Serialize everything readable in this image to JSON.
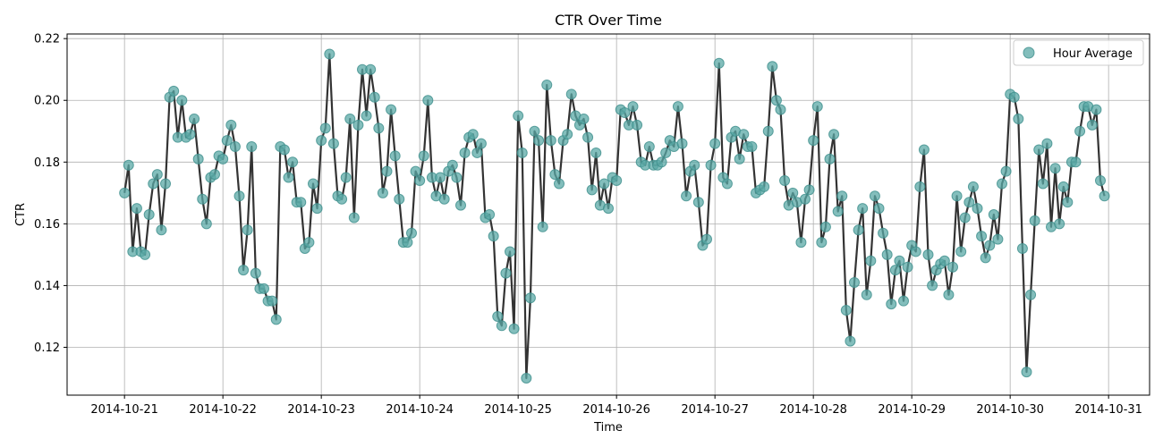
{
  "chart_data": {
    "type": "line",
    "title": "CTR Over Time",
    "xlabel": "Time",
    "ylabel": "CTR",
    "x_start": "2014-10-21T00:00",
    "x_step_hours": 1,
    "x_ticks": [
      "2014-10-21",
      "2014-10-22",
      "2014-10-23",
      "2014-10-24",
      "2014-10-25",
      "2014-10-26",
      "2014-10-27",
      "2014-10-28",
      "2014-10-29",
      "2014-10-30",
      "2014-10-31"
    ],
    "xlim": [
      "2014-10-20T10:00",
      "2014-10-31T10:00"
    ],
    "y_ticks": [
      0.12,
      0.14,
      0.16,
      0.18,
      0.2,
      0.22
    ],
    "y_tick_labels": [
      "0.12",
      "0.14",
      "0.16",
      "0.18",
      "0.20",
      "0.22"
    ],
    "ylim": [
      0.1045,
      0.2215
    ],
    "grid": true,
    "legend_position": "top-right",
    "series": [
      {
        "name": "Hour Average",
        "marker_color": "#5aa8a5",
        "line_color": "#333333",
        "values": [
          0.17,
          0.179,
          0.151,
          0.165,
          0.151,
          0.15,
          0.163,
          0.173,
          0.176,
          0.158,
          0.173,
          0.201,
          0.203,
          0.188,
          0.2,
          0.188,
          0.189,
          0.194,
          0.181,
          0.168,
          0.16,
          0.175,
          0.176,
          0.182,
          0.181,
          0.187,
          0.192,
          0.185,
          0.169,
          0.145,
          0.158,
          0.185,
          0.144,
          0.139,
          0.139,
          0.135,
          0.135,
          0.129,
          0.185,
          0.184,
          0.175,
          0.18,
          0.167,
          0.167,
          0.152,
          0.154,
          0.173,
          0.165,
          0.187,
          0.191,
          0.215,
          0.186,
          0.169,
          0.168,
          0.175,
          0.194,
          0.162,
          0.192,
          0.21,
          0.195,
          0.21,
          0.201,
          0.191,
          0.17,
          0.177,
          0.197,
          0.182,
          0.168,
          0.154,
          0.154,
          0.157,
          0.177,
          0.174,
          0.182,
          0.2,
          0.175,
          0.169,
          0.175,
          0.168,
          0.177,
          0.179,
          0.175,
          0.166,
          0.183,
          0.188,
          0.189,
          0.183,
          0.186,
          0.162,
          0.163,
          0.156,
          0.13,
          0.127,
          0.144,
          0.151,
          0.126,
          0.195,
          0.183,
          0.11,
          0.136,
          0.19,
          0.187,
          0.159,
          0.205,
          0.187,
          0.176,
          0.173,
          0.187,
          0.189,
          0.202,
          0.195,
          0.192,
          0.194,
          0.188,
          0.171,
          0.183,
          0.166,
          0.173,
          0.165,
          0.175,
          0.174,
          0.197,
          0.196,
          0.192,
          0.198,
          0.192,
          0.18,
          0.179,
          0.185,
          0.179,
          0.179,
          0.18,
          0.183,
          0.187,
          0.185,
          0.198,
          0.186,
          0.169,
          0.177,
          0.179,
          0.167,
          0.153,
          0.155,
          0.179,
          0.186,
          0.212,
          0.175,
          0.173,
          0.188,
          0.19,
          0.181,
          0.189,
          0.185,
          0.185,
          0.17,
          0.171,
          0.172,
          0.19,
          0.211,
          0.2,
          0.197,
          0.174,
          0.166,
          0.17,
          0.167,
          0.154,
          0.168,
          0.171,
          0.187,
          0.198,
          0.154,
          0.159,
          0.181,
          0.189,
          0.164,
          0.169,
          0.132,
          0.122,
          0.141,
          0.158,
          0.165,
          0.137,
          0.148,
          0.169,
          0.165,
          0.157,
          0.15,
          0.134,
          0.145,
          0.148,
          0.135,
          0.146,
          0.153,
          0.151,
          0.172,
          0.184,
          0.15,
          0.14,
          0.145,
          0.147,
          0.148,
          0.137,
          0.146,
          0.169,
          0.151,
          0.162,
          0.167,
          0.172,
          0.165,
          0.156,
          0.149,
          0.153,
          0.163,
          0.155,
          0.173,
          0.177,
          0.202,
          0.201,
          0.194,
          0.152,
          0.112,
          0.137,
          0.161,
          0.184,
          0.173,
          0.186,
          0.159,
          0.178,
          0.16,
          0.172,
          0.167,
          0.18,
          0.18,
          0.19,
          0.198,
          0.198,
          0.192,
          0.197,
          0.174,
          0.169
        ]
      }
    ]
  }
}
